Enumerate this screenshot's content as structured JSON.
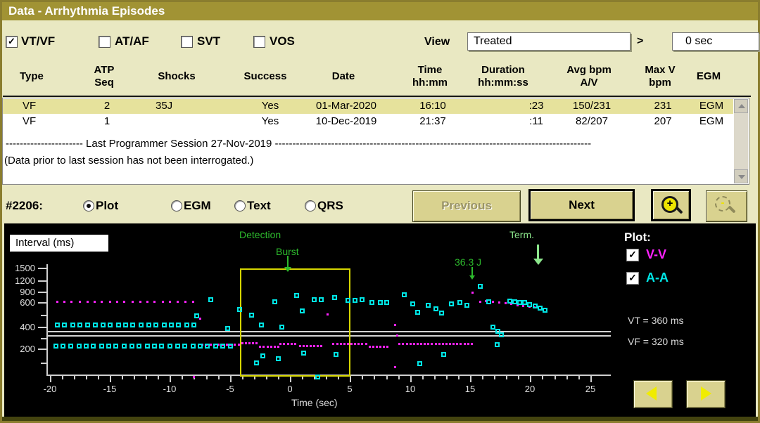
{
  "title_bar": {
    "title": "Data - Arrhythmia Episodes"
  },
  "filters": {
    "checkboxes": [
      {
        "label": "VT/VF",
        "checked": true
      },
      {
        "label": "AT/AF",
        "checked": false
      },
      {
        "label": "SVT",
        "checked": false
      },
      {
        "label": "VOS",
        "checked": false
      }
    ],
    "view_label": "View",
    "view_value": "Treated",
    "operator": ">",
    "duration_value": "0 sec"
  },
  "table": {
    "columns": [
      {
        "line1": "Type",
        "line2": ""
      },
      {
        "line1": "ATP",
        "line2": "Seq"
      },
      {
        "line1": "Shocks",
        "line2": ""
      },
      {
        "line1": "Success",
        "line2": ""
      },
      {
        "line1": "Date",
        "line2": ""
      },
      {
        "line1": "Time",
        "line2": "hh:mm"
      },
      {
        "line1": "Duration",
        "line2": "hh:mm:ss"
      },
      {
        "line1": "Avg bpm",
        "line2": "A/V"
      },
      {
        "line1": "Max V",
        "line2": "bpm"
      },
      {
        "line1": "EGM",
        "line2": ""
      }
    ],
    "rows": [
      {
        "highlighted": true,
        "cells": [
          "VF",
          "2",
          "35J",
          "Yes",
          "01-Mar-2020",
          "16:10",
          ":23",
          "150/231",
          "231",
          "EGM"
        ]
      },
      {
        "highlighted": false,
        "cells": [
          "VF",
          "1",
          "",
          "Yes",
          "10-Dec-2019",
          "21:37",
          ":11",
          "82/207",
          "207",
          "EGM"
        ]
      }
    ],
    "session_divider": "---------------------- Last Programmer Session 27-Nov-2019 ------------------------------------------------------------------------------------------",
    "note": "(Data prior to last session has not been interrogated.)"
  },
  "episode_nav": {
    "episode_label": "#2206:",
    "radios": [
      {
        "label": "Plot",
        "selected": true
      },
      {
        "label": "EGM",
        "selected": false
      },
      {
        "label": "Text",
        "selected": false
      },
      {
        "label": "QRS",
        "selected": false
      }
    ],
    "previous_label": "Previous",
    "next_label": "Next",
    "zoom_in_icon": "magnifier-plus",
    "zoom_out_icon": "magnifier-minus"
  },
  "plot_panel": {
    "interval_label": "Interval (ms)",
    "plot_legend": {
      "title": "Plot:",
      "items": [
        {
          "label": "V-V",
          "checked": true,
          "color": "#ff22ff"
        },
        {
          "label": "A-A",
          "checked": true,
          "color": "#00e5e5"
        }
      ]
    },
    "threshold_labels": [
      {
        "label": "VT = 360 ms"
      },
      {
        "label": "VF = 320 ms"
      }
    ]
  },
  "chart_data": {
    "type": "scatter",
    "xlabel": "Time (sec)",
    "ylabel": "Interval (ms)",
    "xlim": [
      -20.5,
      25.5
    ],
    "x_ticks": [
      -20,
      -15,
      -10,
      -5,
      0,
      5,
      10,
      15,
      20,
      25
    ],
    "y_ticks": [
      1500,
      1200,
      900,
      600,
      400,
      200
    ],
    "y_minor_ticks": [
      500,
      300,
      150
    ],
    "y_scale": "nonlinear-interval",
    "grid": false,
    "legend_position": "right",
    "hlines": [
      {
        "value": 360,
        "label": "VT = 360 ms"
      },
      {
        "value": 320,
        "label": "VF = 320 ms"
      }
    ],
    "detection_box": {
      "t0": -4.15,
      "t1": 4.8
    },
    "annotations": [
      {
        "text": "Detection",
        "t": -2.0,
        "color": "#2db92d",
        "arrow": false
      },
      {
        "text": "Burst",
        "t": -0.3,
        "color": "#2db92d",
        "arrow": true
      },
      {
        "text": "36.3 J",
        "t": 15.0,
        "color": "#2db92d",
        "arrow": true
      },
      {
        "text": "Term.",
        "t": 20.3,
        "color": "#8ce68c",
        "arrow": true
      }
    ],
    "series": [
      {
        "name": "V-V",
        "color": "#ff22ff",
        "marker": "dot",
        "points": [
          [
            -19.4,
            620
          ],
          [
            -18.8,
            620
          ],
          [
            -18.2,
            620
          ],
          [
            -17.5,
            620
          ],
          [
            -16.9,
            620
          ],
          [
            -16.3,
            620
          ],
          [
            -15.7,
            620
          ],
          [
            -15.0,
            620
          ],
          [
            -14.4,
            620
          ],
          [
            -13.8,
            620
          ],
          [
            -13.1,
            620
          ],
          [
            -12.5,
            620
          ],
          [
            -11.9,
            620
          ],
          [
            -11.3,
            620
          ],
          [
            -10.6,
            620
          ],
          [
            -10.0,
            620
          ],
          [
            -9.4,
            620
          ],
          [
            -8.7,
            620
          ],
          [
            -8.1,
            620
          ],
          [
            -8.0,
            100
          ],
          [
            -7.5,
            470
          ],
          [
            -7.3,
            240
          ],
          [
            -7.0,
            240
          ],
          [
            -6.6,
            240
          ],
          [
            -6.3,
            240
          ],
          [
            -6.0,
            240
          ],
          [
            -5.6,
            240
          ],
          [
            -5.3,
            240
          ],
          [
            -5.0,
            240
          ],
          [
            -4.6,
            240
          ],
          [
            -4.3,
            240
          ],
          [
            -4.0,
            252
          ],
          [
            -3.7,
            252
          ],
          [
            -3.4,
            252
          ],
          [
            -3.1,
            252
          ],
          [
            -2.8,
            252
          ],
          [
            -2.5,
            222
          ],
          [
            -2.2,
            222
          ],
          [
            -1.9,
            222
          ],
          [
            -1.6,
            222
          ],
          [
            -1.3,
            222
          ],
          [
            -1.0,
            222
          ],
          [
            -0.8,
            245
          ],
          [
            -0.5,
            245
          ],
          [
            -0.2,
            245
          ],
          [
            0.1,
            245
          ],
          [
            0.4,
            245
          ],
          [
            0.8,
            225
          ],
          [
            1.1,
            225
          ],
          [
            1.4,
            225
          ],
          [
            1.7,
            225
          ],
          [
            2.0,
            225
          ],
          [
            2.3,
            225
          ],
          [
            2.6,
            225
          ],
          [
            3.1,
            505
          ],
          [
            3.6,
            248
          ],
          [
            3.9,
            248
          ],
          [
            4.2,
            248
          ],
          [
            4.5,
            248
          ],
          [
            4.8,
            248
          ],
          [
            5.1,
            248
          ],
          [
            5.4,
            248
          ],
          [
            5.7,
            248
          ],
          [
            6.0,
            248
          ],
          [
            6.3,
            248
          ],
          [
            6.6,
            222
          ],
          [
            6.9,
            222
          ],
          [
            7.2,
            222
          ],
          [
            7.5,
            222
          ],
          [
            7.8,
            222
          ],
          [
            8.1,
            222
          ],
          [
            8.7,
            415
          ],
          [
            8.9,
            320
          ],
          [
            8.7,
            135
          ],
          [
            9.1,
            243
          ],
          [
            9.4,
            243
          ],
          [
            9.7,
            243
          ],
          [
            10.0,
            243
          ],
          [
            10.3,
            243
          ],
          [
            10.6,
            243
          ],
          [
            10.9,
            243
          ],
          [
            11.2,
            243
          ],
          [
            11.5,
            243
          ],
          [
            11.8,
            243
          ],
          [
            12.1,
            243
          ],
          [
            12.4,
            243
          ],
          [
            12.7,
            243
          ],
          [
            13.0,
            243
          ],
          [
            13.3,
            243
          ],
          [
            13.6,
            243
          ],
          [
            13.9,
            243
          ],
          [
            14.2,
            243
          ],
          [
            14.5,
            243
          ],
          [
            14.8,
            243
          ],
          [
            15.1,
            243
          ],
          [
            15.2,
            880
          ],
          [
            15.8,
            625
          ],
          [
            16.3,
            635
          ],
          [
            16.9,
            615
          ],
          [
            17.4,
            605
          ],
          [
            17.9,
            597
          ],
          [
            18.4,
            590
          ],
          [
            18.9,
            580
          ],
          [
            19.4,
            572
          ],
          [
            19.9,
            565
          ],
          [
            20.3,
            558
          ]
        ]
      },
      {
        "name": "A-A",
        "color": "#00e5e5",
        "marker": "open-square",
        "points": [
          [
            -19.4,
            420
          ],
          [
            -18.8,
            420
          ],
          [
            -18.1,
            420
          ],
          [
            -17.5,
            420
          ],
          [
            -16.9,
            420
          ],
          [
            -16.2,
            420
          ],
          [
            -15.6,
            420
          ],
          [
            -15.0,
            420
          ],
          [
            -14.3,
            420
          ],
          [
            -13.7,
            420
          ],
          [
            -13.1,
            420
          ],
          [
            -12.4,
            420
          ],
          [
            -11.8,
            420
          ],
          [
            -11.2,
            420
          ],
          [
            -10.5,
            420
          ],
          [
            -9.9,
            420
          ],
          [
            -9.3,
            420
          ],
          [
            -8.6,
            420
          ],
          [
            -8.0,
            420
          ],
          [
            -19.5,
            228
          ],
          [
            -18.9,
            228
          ],
          [
            -18.3,
            228
          ],
          [
            -17.6,
            228
          ],
          [
            -17.0,
            228
          ],
          [
            -16.4,
            228
          ],
          [
            -15.7,
            228
          ],
          [
            -15.1,
            228
          ],
          [
            -14.5,
            228
          ],
          [
            -13.8,
            228
          ],
          [
            -13.2,
            228
          ],
          [
            -12.6,
            228
          ],
          [
            -11.9,
            228
          ],
          [
            -11.3,
            228
          ],
          [
            -10.7,
            228
          ],
          [
            -10.0,
            228
          ],
          [
            -9.4,
            228
          ],
          [
            -8.8,
            228
          ],
          [
            -8.1,
            228
          ],
          [
            -7.5,
            228
          ],
          [
            -6.9,
            228
          ],
          [
            -6.2,
            228
          ],
          [
            -5.6,
            228
          ],
          [
            -5.0,
            228
          ],
          [
            -7.8,
            490
          ],
          [
            -6.6,
            690
          ],
          [
            -5.2,
            385
          ],
          [
            -4.2,
            545
          ],
          [
            -3.2,
            500
          ],
          [
            -2.4,
            415
          ],
          [
            -1.3,
            620
          ],
          [
            -0.7,
            400
          ],
          [
            0.5,
            800
          ],
          [
            1.0,
            530
          ],
          [
            2.0,
            680
          ],
          [
            2.6,
            680
          ],
          [
            3.7,
            750
          ],
          [
            4.8,
            670
          ],
          [
            -2.8,
            150
          ],
          [
            -2.3,
            175
          ],
          [
            -1.0,
            165
          ],
          [
            1.1,
            185
          ],
          [
            3.8,
            180
          ],
          [
            2.3,
            100
          ],
          [
            5.4,
            670
          ],
          [
            6.0,
            680
          ],
          [
            6.8,
            610
          ],
          [
            7.5,
            610
          ],
          [
            8.0,
            600
          ],
          [
            9.5,
            830
          ],
          [
            10.2,
            590
          ],
          [
            10.6,
            520
          ],
          [
            11.5,
            580
          ],
          [
            12.1,
            550
          ],
          [
            12.6,
            515
          ],
          [
            13.4,
            590
          ],
          [
            14.1,
            600
          ],
          [
            14.7,
            580
          ],
          [
            15.8,
            1050
          ],
          [
            16.5,
            630
          ],
          [
            10.8,
            148
          ],
          [
            12.8,
            180
          ],
          [
            16.9,
            400
          ],
          [
            17.2,
            240
          ],
          [
            17.3,
            360
          ],
          [
            17.6,
            330
          ],
          [
            18.3,
            640
          ],
          [
            18.7,
            620
          ],
          [
            19.1,
            610
          ],
          [
            19.5,
            600
          ],
          [
            19.9,
            585
          ],
          [
            20.4,
            570
          ],
          [
            20.8,
            555
          ],
          [
            21.2,
            540
          ]
        ]
      }
    ]
  }
}
